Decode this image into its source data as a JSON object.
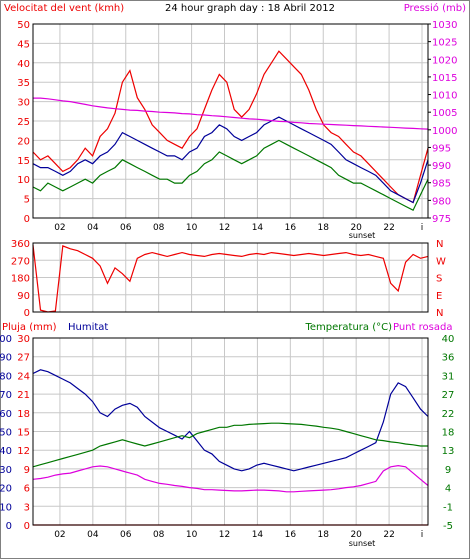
{
  "colors": {
    "red": "#ee0000",
    "green": "#007700",
    "blue": "#000099",
    "magenta": "#dd00dd",
    "grid": "#c8c8c8",
    "frame": "#000000"
  },
  "chart_data": [
    {
      "type": "line",
      "panel": "wind-pressure",
      "title": "24 hour graph day : 18 Abril 2012",
      "ylabel_left": "Velocitat del vent (kmh)",
      "ylabel_right": "Pressió (mb)",
      "ylim_left": [
        0,
        50
      ],
      "ylim_right": [
        975,
        1030
      ],
      "yticks_left": [
        "0",
        "5",
        "10",
        "15",
        "20",
        "25",
        "30",
        "35",
        "40",
        "45",
        "50"
      ],
      "yticks_right": [
        "975",
        "980",
        "985",
        "990",
        "995",
        "1000",
        "1005",
        "1010",
        "1015",
        "1020",
        "1025",
        "1030"
      ],
      "x_labels": [
        "02",
        "04",
        "06",
        "08",
        "10",
        "12",
        "14",
        "16",
        "18",
        "20",
        "22",
        "i"
      ],
      "sunset_label": "sunset",
      "series": [
        {
          "color": "red",
          "values": [
            17,
            15,
            16,
            14,
            12,
            13,
            15,
            18,
            16,
            21,
            23,
            27,
            35,
            38,
            31,
            28,
            24,
            22,
            20,
            19,
            18,
            21,
            23,
            28,
            33,
            37,
            35,
            28,
            26,
            28,
            32,
            37,
            40,
            43,
            41,
            39,
            37,
            33,
            28,
            24,
            22,
            21,
            19,
            17,
            16,
            14,
            12,
            10,
            8,
            6,
            5,
            4,
            11,
            18
          ]
        },
        {
          "color": "blue",
          "values": [
            14,
            13,
            13,
            12,
            11,
            12,
            14,
            15,
            14,
            16,
            17,
            19,
            22,
            21,
            20,
            19,
            18,
            17,
            16,
            16,
            15,
            17,
            18,
            21,
            22,
            24,
            23,
            21,
            20,
            21,
            22,
            24,
            25,
            26,
            25,
            24,
            23,
            22,
            21,
            20,
            19,
            17,
            15,
            14,
            13,
            12,
            11,
            9,
            7,
            6,
            5,
            4,
            9,
            15
          ]
        },
        {
          "color": "green",
          "values": [
            8,
            7,
            9,
            8,
            7,
            8,
            9,
            10,
            9,
            11,
            12,
            13,
            15,
            14,
            13,
            12,
            11,
            10,
            10,
            9,
            9,
            11,
            12,
            14,
            15,
            17,
            16,
            15,
            14,
            15,
            16,
            18,
            19,
            20,
            19,
            18,
            17,
            16,
            15,
            14,
            13,
            11,
            10,
            9,
            9,
            8,
            7,
            6,
            5,
            4,
            3,
            2,
            6,
            10
          ]
        },
        {
          "color": "magenta",
          "axis": "right",
          "values": [
            1009,
            1009,
            1008.8,
            1008.5,
            1008.2,
            1008,
            1007.6,
            1007.2,
            1006.8,
            1006.5,
            1006.2,
            1006,
            1005.8,
            1005.6,
            1005.5,
            1005.3,
            1005.2,
            1005,
            1004.9,
            1004.8,
            1004.6,
            1004.5,
            1004.3,
            1004.2,
            1004,
            1003.9,
            1003.7,
            1003.5,
            1003.3,
            1003.1,
            1003,
            1002.8,
            1002.6,
            1002.4,
            1002.3,
            1002.1,
            1002,
            1001.8,
            1001.7,
            1001.6,
            1001.5,
            1001.4,
            1001.3,
            1001.2,
            1001.1,
            1001,
            1000.9,
            1000.8,
            1000.7,
            1000.6,
            1000.5,
            1000.4,
            1000.3,
            1000.2
          ]
        }
      ]
    },
    {
      "type": "line",
      "panel": "wind-direction",
      "ylim": [
        0,
        360
      ],
      "yticks": [
        "0",
        "90",
        "180",
        "270",
        "360"
      ],
      "compass": [
        "N",
        "W",
        "S",
        "E",
        "N"
      ],
      "series": [
        {
          "color": "red",
          "values": [
            350,
            10,
            0,
            5,
            345,
            330,
            320,
            300,
            280,
            240,
            150,
            230,
            200,
            160,
            280,
            300,
            310,
            300,
            290,
            300,
            310,
            300,
            295,
            290,
            300,
            305,
            300,
            295,
            290,
            300,
            305,
            300,
            310,
            305,
            300,
            295,
            300,
            305,
            300,
            295,
            300,
            305,
            310,
            300,
            295,
            300,
            290,
            280,
            150,
            110,
            260,
            300,
            280,
            290
          ]
        }
      ]
    },
    {
      "type": "line",
      "panel": "rain-humidity-temperature",
      "ylabel_left_1": "Pluja (mm)",
      "ylabel_left_2": "Humitat",
      "ylabel_right_1": "Temperatura (°C)",
      "ylabel_right_2": "Punt rosada",
      "yticks_rain": [
        "0",
        "3",
        "6",
        "9",
        "12",
        "15",
        "18",
        "21",
        "24",
        "27",
        "30"
      ],
      "yticks_humidity": [
        "0",
        "10",
        "20",
        "30",
        "40",
        "50",
        "60",
        "70",
        "80",
        "90",
        "100"
      ],
      "yticks_temp": [
        "-5",
        "-1",
        "4",
        "9",
        "13",
        "18",
        "22",
        "27",
        "31",
        "36",
        "40"
      ],
      "ylim_humidity": [
        0,
        100
      ],
      "ylim_temp": [
        -5,
        40
      ],
      "series": [
        {
          "name": "Pluja (mm)",
          "color": "red",
          "axis": "rain",
          "values": [
            0,
            0,
            0,
            0,
            0,
            0,
            0,
            0,
            0,
            0,
            0,
            0,
            0,
            0,
            0,
            0,
            0,
            0,
            0,
            0,
            0,
            0,
            0,
            0,
            0,
            0,
            0,
            0,
            0,
            0,
            0,
            0,
            0,
            0,
            0,
            0,
            0,
            0,
            0,
            0,
            0,
            0,
            0,
            0,
            0,
            0,
            0,
            0,
            0,
            0,
            0,
            0,
            0,
            0
          ]
        },
        {
          "name": "Humitat",
          "color": "blue",
          "axis": "humidity",
          "values": [
            81,
            83,
            82,
            80,
            78,
            76,
            73,
            70,
            66,
            60,
            58,
            62,
            64,
            65,
            63,
            58,
            55,
            52,
            50,
            48,
            46,
            50,
            45,
            40,
            38,
            34,
            32,
            30,
            29,
            30,
            32,
            33,
            32,
            31,
            30,
            29,
            30,
            31,
            32,
            33,
            34,
            35,
            36,
            38,
            40,
            42,
            44,
            55,
            70,
            76,
            74,
            68,
            62,
            58
          ]
        },
        {
          "name": "Temperatura (°C)",
          "color": "green",
          "axis": "temp",
          "values": [
            9,
            9.5,
            10,
            10.5,
            11,
            11.5,
            12,
            12.5,
            13,
            14,
            14.5,
            15,
            15.5,
            15,
            14.5,
            14,
            14.5,
            15,
            15.5,
            16,
            16.5,
            16,
            17,
            17.5,
            18,
            18.5,
            18.5,
            19,
            19,
            19.2,
            19.3,
            19.4,
            19.5,
            19.5,
            19.4,
            19.3,
            19.2,
            19,
            18.8,
            18.5,
            18.3,
            18,
            17.5,
            17,
            16.5,
            16,
            15.5,
            15.3,
            15,
            14.8,
            14.5,
            14.3,
            14,
            14
          ]
        },
        {
          "name": "Punt rosada",
          "color": "magenta",
          "axis": "temp",
          "values": [
            6,
            6.2,
            6.5,
            7,
            7.3,
            7.5,
            8,
            8.5,
            9,
            9.2,
            9,
            8.5,
            8,
            7.5,
            7,
            6,
            5.5,
            5,
            4.8,
            4.5,
            4.3,
            4,
            3.8,
            3.5,
            3.5,
            3.4,
            3.3,
            3.2,
            3.2,
            3.3,
            3.4,
            3.4,
            3.3,
            3.2,
            3,
            3,
            3.1,
            3.2,
            3.3,
            3.4,
            3.5,
            3.7,
            4,
            4.2,
            4.5,
            5,
            5.5,
            8,
            9,
            9.3,
            9,
            7.5,
            6,
            4.5
          ]
        }
      ]
    }
  ]
}
